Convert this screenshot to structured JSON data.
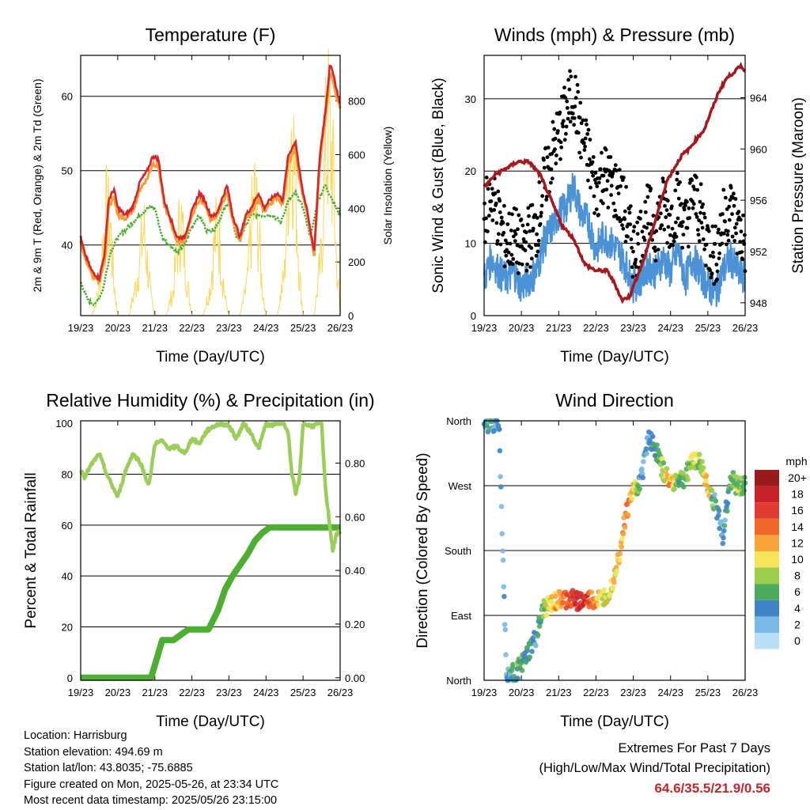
{
  "footer": {
    "location": "Location: Harrisburg",
    "elevation": "Station elevation: 494.69 m",
    "latlon": "Station lat/lon: 43.8035; -75.6885",
    "created": "Figure created on Mon, 2025-05-26, at 23:34 UTC",
    "recent": "Most recent data timestamp: 2025/05/26 23:15:00",
    "extremes_title": "Extremes For Past 7 Days",
    "extremes_sub": "(High/Low/Max Wind/Total Precipitation)",
    "extremes_values": "64.6/35.5/21.9/0.56",
    "extremes_color": "#c0272d"
  },
  "chart_data": [
    {
      "type": "line",
      "title": "Temperature (F)",
      "xlabel": "Time (Day/UTC)",
      "ylabel": "2m & 9m T (Red, Orange) & 2m Td (Green)",
      "y2label": "Solar Insolation (Yellow)",
      "x_ticks": [
        "19/23",
        "20/23",
        "21/23",
        "22/23",
        "23/23",
        "24/23",
        "25/23",
        "26/23"
      ],
      "xlim": [
        0,
        7
      ],
      "ylim": [
        30.5,
        65.5
      ],
      "y_ticks": [
        40,
        50,
        60
      ],
      "y2lim": [
        0,
        970
      ],
      "y2_ticks": [
        0,
        200,
        400,
        600,
        800
      ],
      "grid": "horizontal",
      "series": [
        {
          "name": "2m T",
          "color": "#d7262b",
          "x": [
            0,
            0.1,
            0.3,
            0.5,
            0.65,
            0.75,
            0.9,
            1.0,
            1.2,
            1.4,
            1.6,
            1.8,
            1.95,
            2.1,
            2.25,
            2.4,
            2.6,
            2.8,
            3.0,
            3.2,
            3.35,
            3.5,
            3.65,
            3.8,
            3.95,
            4.1,
            4.3,
            4.45,
            4.6,
            4.8,
            4.95,
            5.1,
            5.3,
            5.45,
            5.6,
            5.8,
            5.9,
            6.0,
            6.1,
            6.3,
            6.45,
            6.6,
            6.72,
            6.8,
            6.9,
            7.0
          ],
          "y": [
            41,
            39,
            36.5,
            35.5,
            39,
            46,
            47.5,
            45,
            44,
            45,
            48.5,
            50,
            52,
            51.5,
            46,
            44,
            41,
            41,
            44.5,
            47,
            46,
            44,
            44,
            46,
            48,
            44,
            41,
            44,
            45,
            47,
            45,
            46,
            47,
            46,
            52,
            54,
            50,
            47,
            45,
            39,
            52,
            58,
            64,
            63.5,
            61,
            59
          ]
        },
        {
          "name": "9m T",
          "color": "#f39d3a",
          "x": [
            0,
            0.1,
            0.3,
            0.5,
            0.65,
            0.75,
            0.9,
            1.0,
            1.2,
            1.4,
            1.6,
            1.8,
            1.95,
            2.1,
            2.25,
            2.4,
            2.6,
            2.8,
            3.0,
            3.2,
            3.35,
            3.5,
            3.65,
            3.8,
            3.95,
            4.1,
            4.3,
            4.45,
            4.6,
            4.8,
            4.95,
            5.1,
            5.3,
            5.45,
            5.6,
            5.8,
            5.9,
            6.0,
            6.1,
            6.3,
            6.45,
            6.6,
            6.72,
            6.8,
            6.9,
            7.0
          ],
          "y": [
            40.5,
            38.5,
            36,
            35,
            38,
            45,
            46.5,
            44,
            43.5,
            44.5,
            47.5,
            49,
            51,
            50.5,
            45.5,
            43.5,
            40.5,
            40.5,
            44,
            46,
            45.5,
            43.5,
            43.5,
            45.5,
            47,
            43.5,
            40.5,
            43.5,
            44.5,
            46,
            44.5,
            45.5,
            46.5,
            45.5,
            51,
            53,
            49,
            46.5,
            44.5,
            38.5,
            51,
            57,
            63,
            62.5,
            60,
            58.5
          ]
        },
        {
          "name": "2m Td",
          "color": "#4caf32",
          "x": [
            0,
            0.2,
            0.4,
            0.6,
            0.8,
            1.0,
            1.2,
            1.4,
            1.6,
            1.8,
            2.0,
            2.2,
            2.4,
            2.6,
            2.8,
            3.0,
            3.2,
            3.4,
            3.6,
            3.8,
            4.0,
            4.2,
            4.4,
            4.6,
            4.8,
            5.0,
            5.2,
            5.4,
            5.6,
            5.8,
            6.0,
            6.2,
            6.4,
            6.6,
            6.8,
            7.0
          ],
          "y": [
            35,
            32.5,
            32,
            34,
            39,
            41,
            42,
            43,
            44,
            45,
            45,
            41,
            40,
            39,
            40,
            42.5,
            44,
            42,
            42,
            44,
            46,
            41,
            42,
            44,
            44,
            44,
            44,
            43,
            46,
            47,
            45,
            41,
            46,
            48,
            46,
            44
          ]
        },
        {
          "name": "Solar Insolation",
          "axis": "y2",
          "color": "#fbd75a",
          "x": [
            0,
            0.3,
            0.5,
            0.6,
            0.7,
            0.8,
            0.9,
            1.0,
            1.3,
            1.5,
            1.6,
            1.7,
            1.8,
            1.9,
            2.0,
            2.3,
            2.5,
            2.6,
            2.7,
            2.8,
            2.9,
            3.0,
            3.3,
            3.5,
            3.6,
            3.7,
            3.8,
            3.9,
            4.0,
            4.3,
            4.5,
            4.6,
            4.7,
            4.8,
            4.9,
            5.0,
            5.3,
            5.5,
            5.6,
            5.7,
            5.8,
            5.9,
            6.0,
            6.3,
            6.5,
            6.6,
            6.7,
            6.8,
            6.9,
            7.0
          ],
          "y": [
            0,
            0,
            120,
            350,
            480,
            420,
            150,
            0,
            0,
            150,
            280,
            420,
            250,
            80,
            0,
            0,
            120,
            320,
            460,
            300,
            120,
            0,
            0,
            140,
            330,
            440,
            240,
            80,
            0,
            0,
            160,
            420,
            560,
            380,
            130,
            0,
            0,
            200,
            700,
            920,
            600,
            200,
            0,
            0,
            300,
            760,
            900,
            700,
            260,
            0
          ]
        }
      ]
    },
    {
      "type": "scatter",
      "title": "Winds (mph) & Pressure (mb)",
      "xlabel": "Time (Day/UTC)",
      "ylabel": "Sonic Wind & Gust (Blue, Black)",
      "y2label": "Station Pressure (Maroon)",
      "x_ticks": [
        "19/23",
        "20/23",
        "21/23",
        "22/23",
        "23/23",
        "24/23",
        "25/23",
        "26/23"
      ],
      "xlim": [
        0,
        7
      ],
      "ylim": [
        0,
        36
      ],
      "y_ticks": [
        0,
        10,
        20,
        30
      ],
      "y2lim": [
        947,
        967.3
      ],
      "y2_ticks": [
        948,
        952,
        956,
        960,
        964
      ],
      "grid": "horizontal",
      "series": [
        {
          "name": "Gust",
          "color": "#000000",
          "x": [
            0,
            0.2,
            0.4,
            0.6,
            0.8,
            1.0,
            1.2,
            1.4,
            1.6,
            1.8,
            2.0,
            2.2,
            2.4,
            2.6,
            2.8,
            3.0,
            3.2,
            3.4,
            3.6,
            3.8,
            4.0,
            4.2,
            4.4,
            4.6,
            4.8,
            5.0,
            5.2,
            5.4,
            5.6,
            5.8,
            6.0,
            6.2,
            6.4,
            6.6,
            6.8,
            7.0
          ],
          "y": [
            14,
            17,
            13,
            10,
            11,
            9,
            11,
            12,
            18,
            22,
            25,
            28,
            31,
            25,
            22,
            17,
            20,
            18,
            17,
            14,
            9,
            11,
            14,
            12,
            15,
            13,
            16,
            12,
            17,
            14,
            10,
            8,
            13,
            15,
            12,
            10
          ]
        },
        {
          "name": "Sonic Wind",
          "color": "#4b92d6",
          "x": [
            0,
            0.2,
            0.4,
            0.6,
            0.8,
            1.0,
            1.2,
            1.4,
            1.6,
            1.8,
            2.0,
            2.2,
            2.4,
            2.6,
            2.8,
            3.0,
            3.2,
            3.4,
            3.6,
            3.8,
            4.0,
            4.2,
            4.4,
            4.6,
            4.8,
            5.0,
            5.2,
            5.4,
            5.6,
            5.8,
            6.0,
            6.2,
            6.4,
            6.6,
            6.8,
            7.0
          ],
          "y": [
            5,
            8,
            6,
            5,
            6,
            4,
            5,
            6,
            10,
            12,
            14,
            15,
            18,
            14,
            13,
            9,
            11,
            10,
            9,
            7,
            4,
            5,
            7,
            6,
            8,
            6,
            9,
            5,
            8,
            6,
            4,
            3,
            6,
            8,
            6,
            5
          ]
        },
        {
          "name": "Station Pressure",
          "axis": "y2",
          "color": "#a5191e",
          "x": [
            0,
            0.3,
            0.6,
            0.9,
            1.2,
            1.5,
            1.8,
            2.1,
            2.4,
            2.7,
            3.0,
            3.3,
            3.5,
            3.7,
            3.9,
            4.1,
            4.3,
            4.5,
            4.7,
            4.9,
            5.1,
            5.3,
            5.5,
            5.7,
            5.9,
            6.1,
            6.3,
            6.5,
            6.7,
            6.9,
            7.0
          ],
          "y": [
            957,
            958,
            958.5,
            959,
            959,
            958,
            956,
            954,
            953,
            951,
            950.5,
            950.5,
            949.5,
            948.2,
            948.5,
            950,
            951.5,
            953.5,
            955.5,
            957.5,
            958.5,
            959.5,
            960,
            960.8,
            961.5,
            963,
            964.5,
            965.5,
            966,
            966.5,
            966
          ]
        }
      ]
    },
    {
      "type": "line",
      "title": "Relative Humidity (%) & Precipitation (in)",
      "xlabel": "Time (Day/UTC)",
      "ylabel": "Percent & Total Rainfall",
      "x_ticks": [
        "19/23",
        "20/23",
        "21/23",
        "22/23",
        "23/23",
        "24/23",
        "25/23",
        "26/23"
      ],
      "xlim": [
        0,
        7
      ],
      "ylim": [
        -1,
        101
      ],
      "y_ticks": [
        0,
        20,
        40,
        60,
        80,
        100
      ],
      "y2lim": [
        -0.0095,
        0.9575
      ],
      "y2_ticks": [
        "0.00",
        "0.20",
        "0.40",
        "0.60",
        "0.80"
      ],
      "grid": "horizontal",
      "series": [
        {
          "name": "Relative Humidity",
          "color": "#9acd5a",
          "x": [
            0,
            0.1,
            0.3,
            0.5,
            0.7,
            0.9,
            1.0,
            1.2,
            1.4,
            1.6,
            1.8,
            1.85,
            2.0,
            2.2,
            2.4,
            2.6,
            2.8,
            3.0,
            3.2,
            3.4,
            3.6,
            3.8,
            4.0,
            4.2,
            4.4,
            4.6,
            4.8,
            5.0,
            5.1,
            5.3,
            5.5,
            5.6,
            5.7,
            5.8,
            5.9,
            6.0,
            6.2,
            6.3,
            6.4,
            6.5,
            6.6,
            6.8,
            6.9,
            7.0
          ],
          "y": [
            82,
            79,
            84,
            88,
            80,
            74,
            71,
            81,
            88,
            85,
            77,
            76,
            92,
            93,
            90,
            91,
            88,
            94,
            92,
            97,
            99,
            100,
            99,
            94,
            100,
            96,
            90,
            100,
            99,
            100,
            100,
            96,
            80,
            72,
            78,
            100,
            99,
            99,
            100,
            100,
            75,
            50,
            56,
            58
          ]
        },
        {
          "name": "Total Rainfall",
          "axis": "y2",
          "color": "#4caf32",
          "x": [
            0,
            1.0,
            1.9,
            2.05,
            2.2,
            2.5,
            2.9,
            3.2,
            3.45,
            3.7,
            3.9,
            4.1,
            4.3,
            4.5,
            4.7,
            4.9,
            5.1,
            5.3,
            5.5,
            6.0,
            6.5,
            7.0
          ],
          "y": [
            0,
            0,
            0,
            0.07,
            0.14,
            0.14,
            0.18,
            0.18,
            0.18,
            0.25,
            0.33,
            0.38,
            0.42,
            0.46,
            0.51,
            0.54,
            0.56,
            0.56,
            0.56,
            0.56,
            0.56,
            0.56
          ]
        }
      ]
    },
    {
      "type": "scatter",
      "title": "Wind Direction",
      "xlabel": "Time (Day/UTC)",
      "ylabel": "Direction (Colored By Speed)",
      "x_ticks": [
        "19/23",
        "20/23",
        "21/23",
        "22/23",
        "23/23",
        "24/23",
        "25/23",
        "26/23"
      ],
      "xlim": [
        0,
        7
      ],
      "y_ticks": [
        "North",
        "East",
        "South",
        "West",
        "North"
      ],
      "ylim": [
        0,
        360
      ],
      "grid": "horizontal",
      "legend": {
        "title": "mph",
        "placement": "right",
        "labels": [
          "20+",
          "18",
          "16",
          "14",
          "12",
          "10",
          "8",
          "6",
          "4",
          "2",
          "0"
        ],
        "colors": [
          "#9a1b1e",
          "#c8222a",
          "#e03c31",
          "#f2682a",
          "#f8a43a",
          "#f6e45a",
          "#9ccd4e",
          "#4dab5e",
          "#3e83c3",
          "#7ab8e6",
          "#b9e0f6"
        ]
      },
      "series": [
        {
          "name": "direction",
          "x": [
            0,
            0.2,
            0.4,
            0.6,
            0.8,
            1.0,
            1.2,
            1.4,
            1.6,
            1.8,
            2.0,
            2.2,
            2.4,
            2.6,
            2.8,
            3.0,
            3.2,
            3.4,
            3.6,
            3.8,
            4.0,
            4.2,
            4.4,
            4.6,
            4.8,
            5.0,
            5.2,
            5.4,
            5.6,
            5.8,
            6.0,
            6.2,
            6.4,
            6.6,
            6.8,
            7.0
          ],
          "y": [
            355,
            358,
            356,
            5,
            10,
            20,
            40,
            60,
            100,
            105,
            110,
            112,
            112,
            110,
            111,
            112,
            114,
            130,
            170,
            230,
            265,
            275,
            340,
            320,
            290,
            275,
            278,
            280,
            310,
            300,
            270,
            245,
            200,
            280,
            270,
            270
          ],
          "speed": [
            3,
            4,
            3,
            3,
            5,
            6,
            5,
            4,
            8,
            11,
            12,
            14,
            16,
            18,
            15,
            12,
            10,
            9,
            10,
            13,
            11,
            4,
            3,
            5,
            8,
            12,
            7,
            6,
            9,
            8,
            12,
            4,
            3,
            6,
            8,
            5
          ]
        }
      ]
    }
  ]
}
